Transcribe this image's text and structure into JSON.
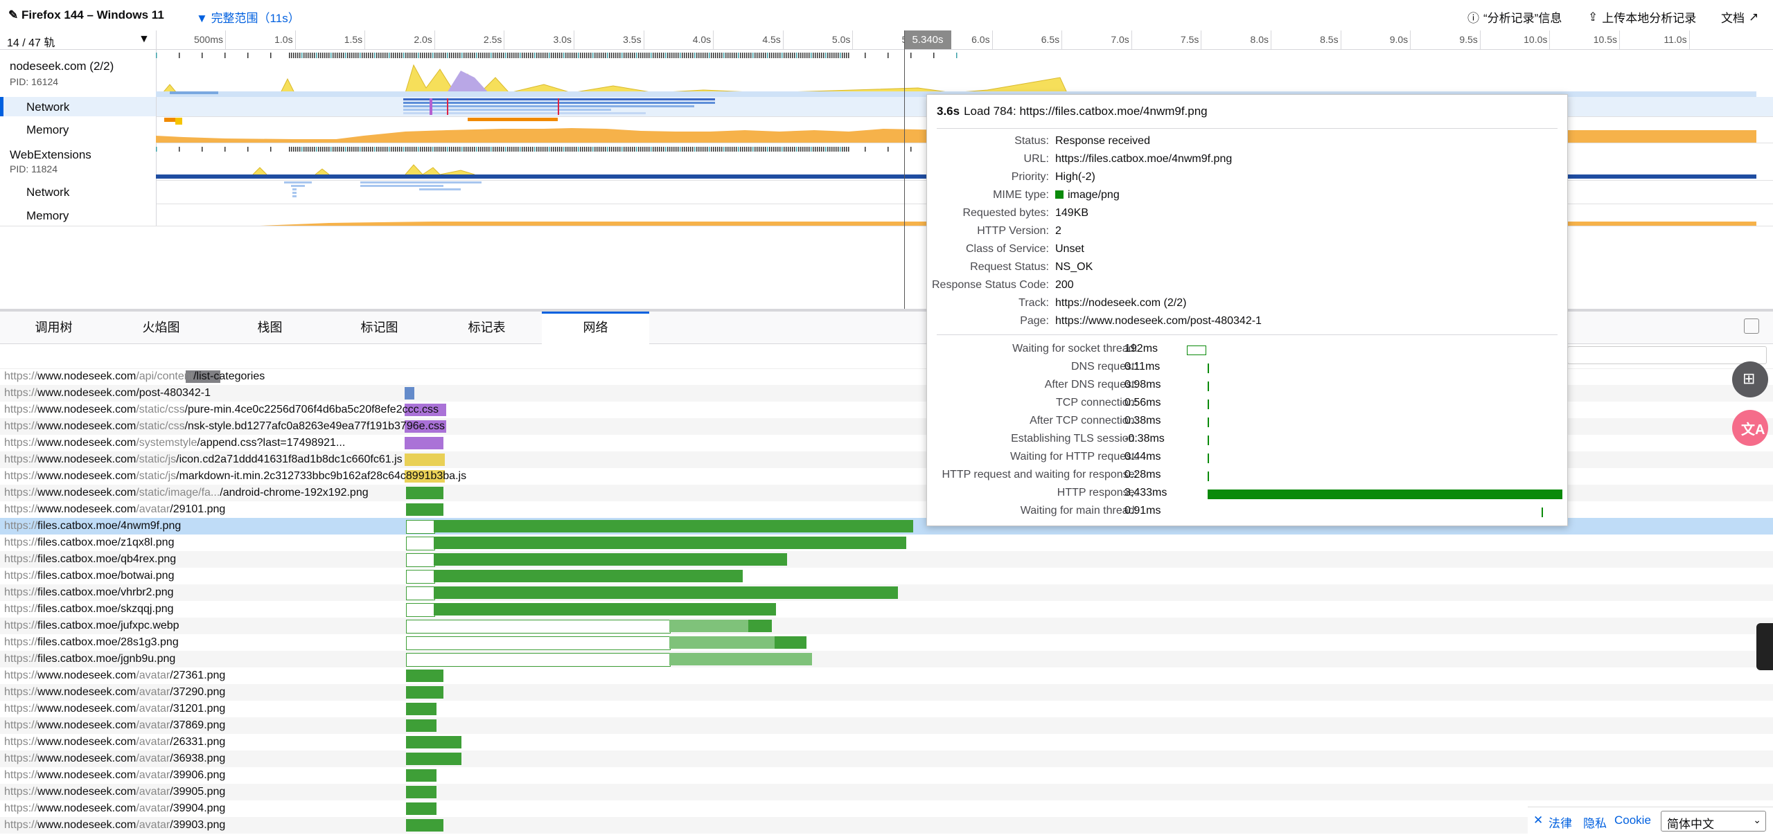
{
  "topbar": {
    "app_title": "Firefox 144 – Windows 11",
    "range_label": "完整范围（11s）",
    "info_label": "“分析记录”信息",
    "upload_label": "上传本地分析记录",
    "docs_label": "文档"
  },
  "timeline": {
    "track_count": "14 / 47 轨",
    "ticks": [
      "500ms",
      "1.0s",
      "1.5s",
      "2.0s",
      "2.5s",
      "3.0s",
      "3.5s",
      "4.0s",
      "4.5s",
      "5.0s",
      "5.5s",
      "6.0s",
      "6.5s",
      "7.0s",
      "7.5s",
      "8.0s",
      "8.5s",
      "9.0s",
      "9.5s",
      "10.0s",
      "10.5s",
      "11.0s"
    ],
    "hover_time": "5.340s",
    "tracks": [
      {
        "name": "nodeseek.com (2/2)",
        "pid": "PID: 16124"
      },
      {
        "name": "Network"
      },
      {
        "name": "Memory"
      },
      {
        "name": "WebExtensions",
        "pid": "PID: 11824"
      },
      {
        "name": "Network"
      },
      {
        "name": "Memory"
      }
    ]
  },
  "tabs": [
    "调用树",
    "火焰图",
    "栈图",
    "标记图",
    "标记表",
    "网络"
  ],
  "active_tab": "网络",
  "requests": [
    {
      "pre": "https://",
      "host": "www.nodeseek.com",
      "path_dim": "/api/content",
      "path": "/list-categories"
    },
    {
      "pre": "https://",
      "host": "www.nodeseek.com",
      "path_dim": "",
      "path": "/post-480342-1"
    },
    {
      "pre": "https://",
      "host": "www.nodeseek.com",
      "path_dim": "/static/css",
      "path": "/pure-min.4ce0c2256d706f4d6ba5c20f8efe2ccc.css"
    },
    {
      "pre": "https://",
      "host": "www.nodeseek.com",
      "path_dim": "/static/css",
      "path": "/nsk-style.bd1277afc0a8263e49ea77f191b3796e.css"
    },
    {
      "pre": "https://",
      "host": "www.nodeseek.com",
      "path_dim": "/systemstyle",
      "path": "/append.css?last=17498921..."
    },
    {
      "pre": "https://",
      "host": "www.nodeseek.com",
      "path_dim": "/static/js",
      "path": "/icon.cd2a71ddd41631f8ad1b8dc1c660fc61.js"
    },
    {
      "pre": "https://",
      "host": "www.nodeseek.com",
      "path_dim": "/static/js",
      "path": "/markdown-it.min.2c312733bbc9b162af28c64c8991b3ba.js"
    },
    {
      "pre": "https://",
      "host": "www.nodeseek.com",
      "path_dim": "/static/image/fa...",
      "path": "/android-chrome-192x192.png"
    },
    {
      "pre": "https://",
      "host": "www.nodeseek.com",
      "path_dim": "/avatar",
      "path": "/29101.png"
    },
    {
      "pre": "https://",
      "host": "files.catbox.moe",
      "path_dim": "",
      "path": "/4nwm9f.png"
    },
    {
      "pre": "https://",
      "host": "files.catbox.moe",
      "path_dim": "",
      "path": "/z1qx8l.png"
    },
    {
      "pre": "https://",
      "host": "files.catbox.moe",
      "path_dim": "",
      "path": "/qb4rex.png"
    },
    {
      "pre": "https://",
      "host": "files.catbox.moe",
      "path_dim": "",
      "path": "/botwai.png"
    },
    {
      "pre": "https://",
      "host": "files.catbox.moe",
      "path_dim": "",
      "path": "/vhrbr2.png"
    },
    {
      "pre": "https://",
      "host": "files.catbox.moe",
      "path_dim": "",
      "path": "/skzqqj.png"
    },
    {
      "pre": "https://",
      "host": "files.catbox.moe",
      "path_dim": "",
      "path": "/jufxpc.webp"
    },
    {
      "pre": "https://",
      "host": "files.catbox.moe",
      "path_dim": "",
      "path": "/28s1g3.png"
    },
    {
      "pre": "https://",
      "host": "files.catbox.moe",
      "path_dim": "",
      "path": "/jgnb9u.png"
    },
    {
      "pre": "https://",
      "host": "www.nodeseek.com",
      "path_dim": "/avatar",
      "path": "/27361.png"
    },
    {
      "pre": "https://",
      "host": "www.nodeseek.com",
      "path_dim": "/avatar",
      "path": "/37290.png"
    },
    {
      "pre": "https://",
      "host": "www.nodeseek.com",
      "path_dim": "/avatar",
      "path": "/31201.png"
    },
    {
      "pre": "https://",
      "host": "www.nodeseek.com",
      "path_dim": "/avatar",
      "path": "/37869.png"
    },
    {
      "pre": "https://",
      "host": "www.nodeseek.com",
      "path_dim": "/avatar",
      "path": "/26331.png"
    },
    {
      "pre": "https://",
      "host": "www.nodeseek.com",
      "path_dim": "/avatar",
      "path": "/36938.png"
    },
    {
      "pre": "https://",
      "host": "www.nodeseek.com",
      "path_dim": "/avatar",
      "path": "/39906.png"
    },
    {
      "pre": "https://",
      "host": "www.nodeseek.com",
      "path_dim": "/avatar",
      "path": "/39905.png"
    },
    {
      "pre": "https://",
      "host": "www.nodeseek.com",
      "path_dim": "/avatar",
      "path": "/39904.png"
    },
    {
      "pre": "https://",
      "host": "www.nodeseek.com",
      "path_dim": "/avatar",
      "path": "/39903.png"
    }
  ],
  "tooltip": {
    "time": "3.6s",
    "title": "Load 784: https://files.catbox.moe/4nwm9f.png",
    "fields": [
      {
        "k": "Status:",
        "v": "Response received"
      },
      {
        "k": "URL:",
        "v": "https://files.catbox.moe/4nwm9f.png"
      },
      {
        "k": "Priority:",
        "v": "High(-2)"
      },
      {
        "k": "MIME type:",
        "v": "image/png"
      },
      {
        "k": "Requested bytes:",
        "v": "149KB"
      },
      {
        "k": "HTTP Version:",
        "v": "2"
      },
      {
        "k": "Class of Service:",
        "v": "Unset"
      },
      {
        "k": "Request Status:",
        "v": "NS_OK"
      },
      {
        "k": "Response Status Code:",
        "v": "200"
      },
      {
        "k": "Track:",
        "v": "https://nodeseek.com (2/2)"
      },
      {
        "k": "Page:",
        "v": "https://www.nodeseek.com/post-480342-1"
      }
    ],
    "timings": [
      {
        "k": "Waiting for socket thread:",
        "v": "192ms"
      },
      {
        "k": "DNS request:",
        "v": "0.11ms"
      },
      {
        "k": "After DNS request:",
        "v": "0.98ms"
      },
      {
        "k": "TCP connection:",
        "v": "0.56ms"
      },
      {
        "k": "After TCP connection:",
        "v": "0.38ms"
      },
      {
        "k": "Establishing TLS session:",
        "v": "-0.38ms"
      },
      {
        "k": "Waiting for HTTP request:",
        "v": "0.44ms"
      },
      {
        "k": "HTTP request and waiting for response:",
        "v": "0.28ms"
      },
      {
        "k": "HTTP response:",
        "v": "3,433ms"
      },
      {
        "k": "Waiting for main thread:",
        "v": "0.91ms"
      }
    ]
  },
  "footer": {
    "legal": "法律",
    "privacy": "隐私",
    "cookie": "Cookie",
    "language": "简体中文"
  },
  "colors": {
    "accent": "#0060df",
    "network_bar": "#3e9f37",
    "memory": "#f4a93a",
    "css": "#9b59d0",
    "js": "#e6c93a",
    "html": "#4a78c2"
  }
}
